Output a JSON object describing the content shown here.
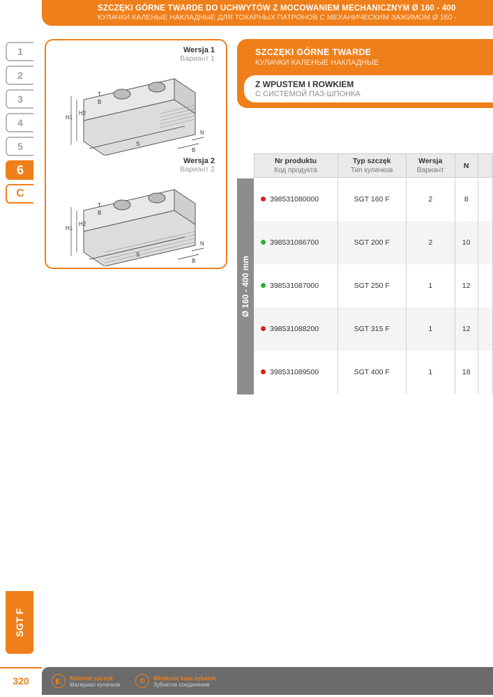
{
  "header": {
    "title_pl": "SZCZĘKI GÓRNE TWARDE DO UCHWYTÓW Z MOCOWANIEM MECHANICZNYM Ø 160 - 400",
    "title_ru": "КУЛАЧКИ КАЛЕНЫЕ НАКЛАДНЫЕ ДЛЯ ТОКАРНЫХ ПАТРОНОВ С МЕХАНИЧЕСКИМ ЗАЖИМОМ Ø 160 -"
  },
  "tabs": [
    "1",
    "2",
    "3",
    "4",
    "5",
    "6",
    "C"
  ],
  "tabs_active_index": 5,
  "tabs_sub_index": 6,
  "diagram": {
    "v1_pl": "Wersja 1",
    "v1_ru": "Вариант 1",
    "v2_pl": "Wersja 2",
    "v2_ru": "Вариант 2"
  },
  "info": {
    "t1_pl": "SZCZĘKI GÓRNE TWARDE",
    "t1_ru": "КУЛАЧКИ КАЛЕНЫЕ НАКЛАДНЫЕ",
    "s1_pl": "Z WPUSTEM I ROWKIEM",
    "s1_ru": "С СИСТЕМОЙ ПАЗ-ШПОНКА"
  },
  "table": {
    "sidebar_label": "Ø 160 - 400 mm",
    "columns": [
      {
        "pl": "Nr produktu",
        "ru": "Код продукта"
      },
      {
        "pl": "Typ szczęk",
        "ru": "Тип кулачков"
      },
      {
        "pl": "Wersja",
        "ru": "Вариант"
      },
      {
        "pl": "N",
        "ru": ""
      }
    ],
    "rows": [
      {
        "dot": "#d42020",
        "code": "398531080000",
        "type": "SGT 160 F",
        "ver": "2",
        "n": "8",
        "alt": false
      },
      {
        "dot": "#2bb02b",
        "code": "398531086700",
        "type": "SGT 200 F",
        "ver": "2",
        "n": "10",
        "alt": true
      },
      {
        "dot": "#2bb02b",
        "code": "398531087000",
        "type": "SGT 250 F",
        "ver": "1",
        "n": "12",
        "alt": false
      },
      {
        "dot": "#d42020",
        "code": "398531088200",
        "type": "SGT 315 F",
        "ver": "1",
        "n": "12",
        "alt": true
      },
      {
        "dot": "#d42020",
        "code": "398531089500",
        "type": "SGT 400 F",
        "ver": "1",
        "n": "18",
        "alt": false
      }
    ]
  },
  "product_tag": "SGT F",
  "page_number": "320",
  "footer": [
    {
      "icon": "◧",
      "l1": "Materiał szczęk",
      "l2": "Материал кулачков"
    },
    {
      "icon": "⚙",
      "l1": "Wielkość kąta zębatek",
      "l2": "Зубчатое соединение"
    }
  ],
  "colors": {
    "accent": "#ef7f1a",
    "grey_bar": "#8d8d8d",
    "footer_bg": "#6b6b6b"
  }
}
